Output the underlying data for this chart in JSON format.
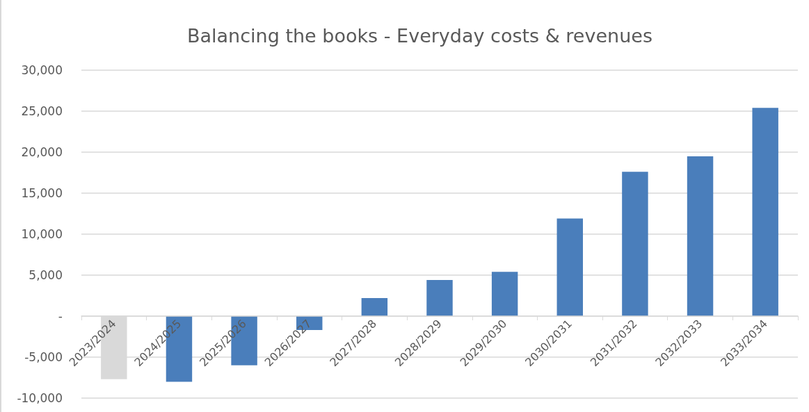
{
  "chart_data": {
    "type": "bar",
    "title": "Balancing the books - Everyday costs & revenues",
    "categories": [
      "2023/2024",
      "2024/2025",
      "2025/2026",
      "2026/2027",
      "2027/2028",
      "2028/2029",
      "2029/2030",
      "2030/2031",
      "2031/2032",
      "2032/2033",
      "2033/2034"
    ],
    "values": [
      -7700,
      -8000,
      -6000,
      -1700,
      2200,
      4400,
      5400,
      11900,
      17600,
      19500,
      25400
    ],
    "colors": [
      "#d9d9d9",
      "#4a7ebb",
      "#4a7ebb",
      "#4a7ebb",
      "#4a7ebb",
      "#4a7ebb",
      "#4a7ebb",
      "#4a7ebb",
      "#4a7ebb",
      "#4a7ebb",
      "#4a7ebb"
    ],
    "ylim": [
      -10000,
      30000
    ],
    "yticks": [
      {
        "value": -10000,
        "label": "-10,000"
      },
      {
        "value": -5000,
        "label": "-5,000"
      },
      {
        "value": 0,
        "label": "-"
      },
      {
        "value": 5000,
        "label": "5,000"
      },
      {
        "value": 10000,
        "label": "10,000"
      },
      {
        "value": 15000,
        "label": "15,000"
      },
      {
        "value": 20000,
        "label": "20,000"
      },
      {
        "value": 25000,
        "label": "25,000"
      },
      {
        "value": 30000,
        "label": "30,000"
      }
    ],
    "grid": "y"
  }
}
